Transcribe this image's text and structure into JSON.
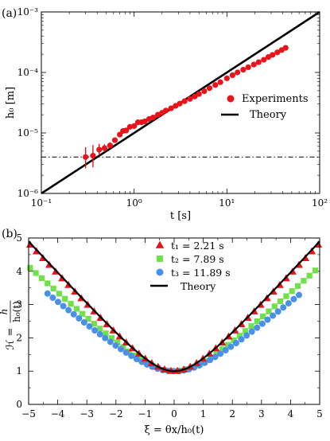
{
  "chart_data": [
    {
      "panel_label": "(a)",
      "type": "scatter",
      "scale": "log-log",
      "xlabel": "t [s]",
      "ylabel": "h₀ [m]",
      "xlim": [
        0.1,
        100
      ],
      "ylim": [
        1e-06,
        0.001
      ],
      "x_tick_labels": [
        "10⁻¹",
        "10⁰",
        "10¹",
        "10²"
      ],
      "y_tick_labels": [
        "10⁻⁶",
        "10⁻⁵",
        "10⁻⁴",
        "10⁻³"
      ],
      "x_ticks": [
        0.1,
        1,
        10,
        100
      ],
      "y_ticks": [
        1e-06,
        1e-05,
        0.0001,
        0.001
      ],
      "legend_position": "middle-right",
      "hline": {
        "y": 4e-06,
        "style": "dash-dot"
      },
      "series": [
        {
          "name": "Experiments",
          "kind": "points",
          "color": "#e8141a",
          "x": [
            0.3,
            0.36,
            0.42,
            0.48,
            0.55,
            0.62,
            0.7,
            0.76,
            0.82,
            0.9,
            1.0,
            1.1,
            1.2,
            1.3,
            1.45,
            1.6,
            1.8,
            2.0,
            2.2,
            2.5,
            2.8,
            3.1,
            3.5,
            4.0,
            4.5,
            5.0,
            5.7,
            6.5,
            7.5,
            8.5,
            10.0,
            11.5,
            13.0,
            15.0,
            17.0,
            19.5,
            22.0,
            25.0,
            28.0,
            31.0,
            35.0,
            39.0,
            43.0
          ],
          "y": [
            4e-06,
            4.2e-06,
            5.3e-06,
            5.6e-06,
            6.2e-06,
            7.6e-06,
            9.4e-06,
            1.08e-05,
            1.1e-05,
            1.26e-05,
            1.3e-05,
            1.5e-05,
            1.5e-05,
            1.55e-05,
            1.7e-05,
            1.8e-05,
            2e-05,
            2.15e-05,
            2.35e-05,
            2.55e-05,
            2.8e-05,
            3.05e-05,
            3.35e-05,
            3.65e-05,
            4e-05,
            4.4e-05,
            4.9e-05,
            5.5e-05,
            6.2e-05,
            6.9e-05,
            8e-05,
            9e-05,
            0.0001,
            0.000111,
            0.000122,
            0.000135,
            0.000148,
            0.000162,
            0.00018,
            0.000195,
            0.000215,
            0.000235,
            0.000255
          ],
          "err_lo": [
            2.6e-06,
            2.7e-06,
            4.3e-06,
            4.9e-06,
            5.6e-06,
            7e-06
          ],
          "err_hi": [
            5.8e-06,
            6.3e-06,
            6.6e-06,
            6.5e-06,
            7e-06,
            8.2e-06
          ]
        },
        {
          "name": "Theory",
          "kind": "line",
          "color": "#000000",
          "x": [
            0.1,
            100
          ],
          "y": [
            1e-06,
            0.001
          ]
        }
      ]
    },
    {
      "panel_label": "(b)",
      "type": "scatter",
      "xlabel": "ξ = θx/h₀(t)",
      "ylabel": "ℋ = h / h₀(t)",
      "ylabel_numerator": "h",
      "ylabel_denominator": "h₀(t)",
      "ylabel_symbol": "ℋ =",
      "xlim": [
        -5,
        5
      ],
      "ylim": [
        0,
        5
      ],
      "x_ticks": [
        -5,
        -4,
        -3,
        -2,
        -1,
        0,
        1,
        2,
        3,
        4,
        5
      ],
      "x_tick_labels": [
        "−5",
        "−4",
        "−3",
        "−2",
        "−1",
        "0",
        "1",
        "2",
        "3",
        "4",
        "5"
      ],
      "y_ticks": [
        0,
        1,
        2,
        3,
        4,
        5
      ],
      "y_tick_labels": [
        "0",
        "1",
        "2",
        "3",
        "4",
        "5"
      ],
      "legend_position": "top-center",
      "series": [
        {
          "name": "t₁ = 2.21 s",
          "marker": "triangle",
          "color": "#e8141a",
          "xmax": 4.95
        },
        {
          "name": "t₂ = 7.89 s",
          "marker": "square",
          "color": "#6fe24a",
          "xmax": 4.95
        },
        {
          "name": "t₃ = 11.89 s",
          "marker": "circle",
          "color": "#4a8fe8",
          "xmax": 4.35
        },
        {
          "name": "Theory",
          "marker": "line",
          "color": "#000000",
          "xmax": 5.0
        }
      ]
    }
  ]
}
